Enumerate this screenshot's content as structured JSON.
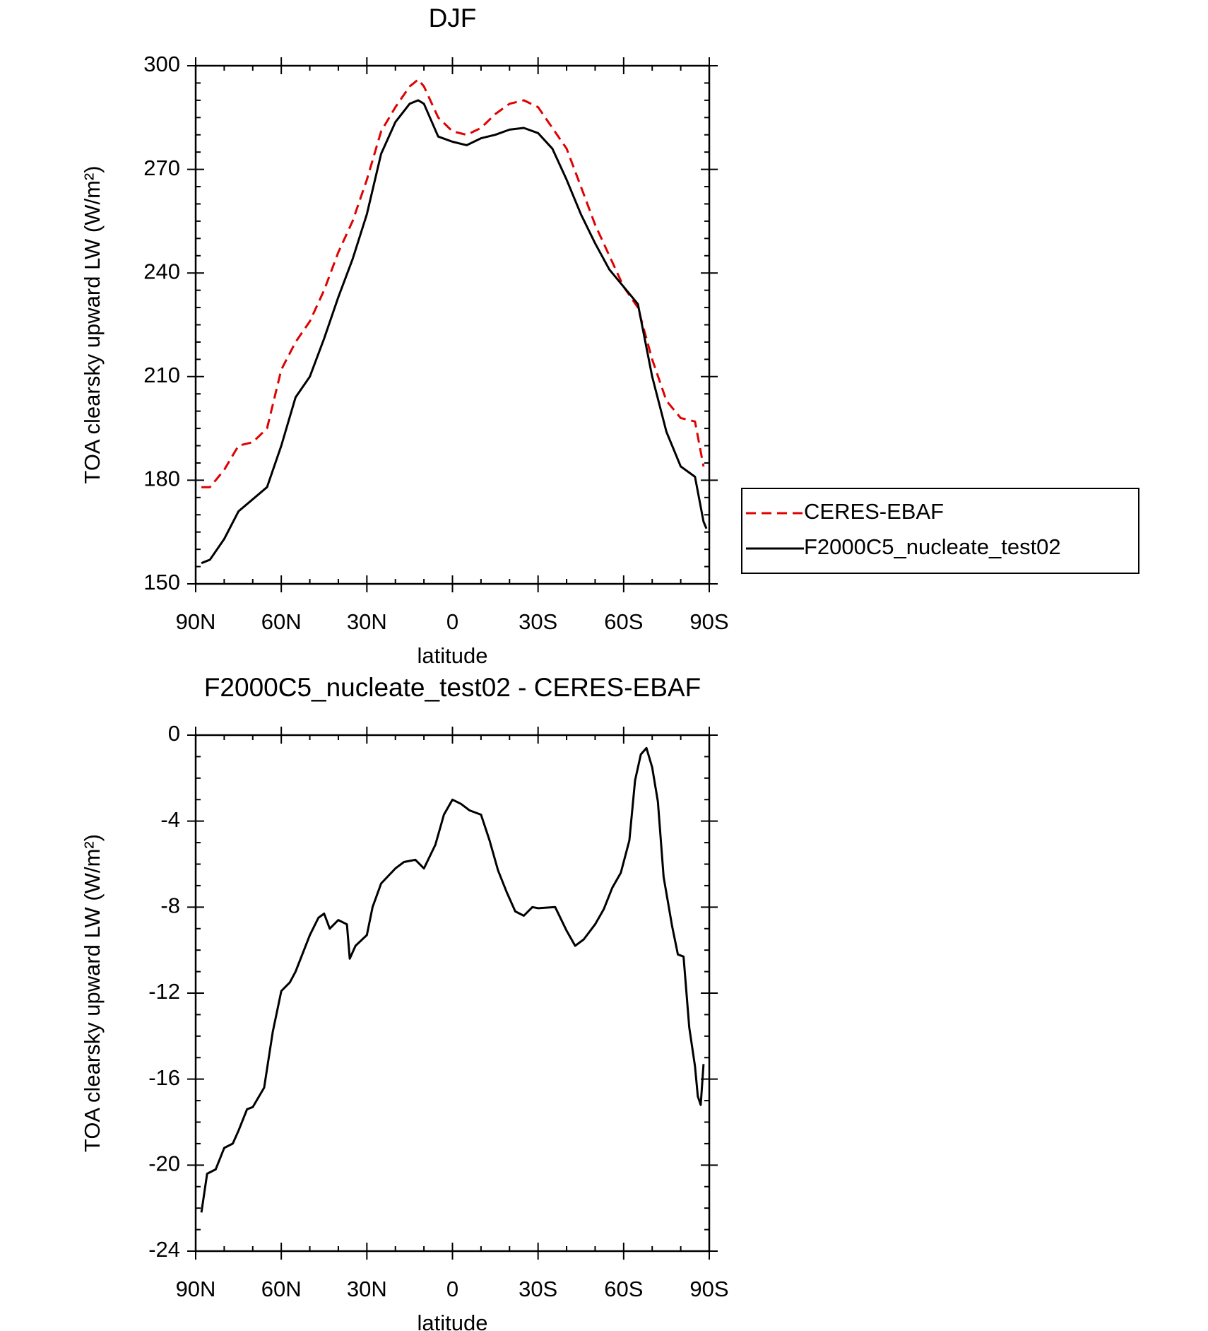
{
  "chart_data": [
    {
      "type": "line",
      "title": "DJF",
      "xlabel": "latitude",
      "ylabel": "TOA clearsky upward LW (W/m²)",
      "x": [
        88,
        85,
        80,
        75,
        70,
        65,
        60,
        55,
        50,
        45,
        40,
        35,
        30,
        25,
        20,
        15,
        12,
        10,
        5,
        0,
        -5,
        -10,
        -15,
        -20,
        -25,
        -30,
        -35,
        -40,
        -45,
        -50,
        -55,
        -60,
        -65,
        -70,
        -75,
        -80,
        -85,
        -88,
        -89
      ],
      "series": [
        {
          "name": "CERES-EBAF",
          "color": "#e00000",
          "dash": true,
          "values": [
            178,
            178,
            183,
            190,
            191,
            195,
            212,
            220,
            226,
            235,
            246,
            255,
            267,
            281,
            288,
            294,
            296,
            294,
            285,
            281,
            280,
            282,
            286,
            289,
            290,
            288,
            282,
            276,
            265,
            254,
            245,
            236,
            230,
            215,
            203,
            198,
            197,
            184,
            null
          ]
        },
        {
          "name": "F2000C5_nucleate_test02",
          "color": "#000000",
          "dash": false,
          "values": [
            156,
            157,
            163,
            171,
            174.5,
            178,
            190,
            204,
            210,
            221,
            233,
            244,
            257,
            274.5,
            283.7,
            289,
            290,
            289,
            279.5,
            278,
            277,
            279,
            280,
            281.5,
            282,
            280.5,
            276,
            267,
            257,
            248.6,
            241,
            236,
            231,
            210,
            194,
            184,
            181,
            168,
            166
          ]
        }
      ],
      "xlim": [
        90,
        -90
      ],
      "ylim": [
        150,
        300
      ],
      "xticks": [
        {
          "value": 90,
          "label": "90N"
        },
        {
          "value": 60,
          "label": "60N"
        },
        {
          "value": 30,
          "label": "30N"
        },
        0,
        {
          "value": -30,
          "label": "30S"
        },
        {
          "value": -60,
          "label": "60S"
        },
        {
          "value": -90,
          "label": "90S"
        }
      ],
      "yticks": [
        150,
        180,
        210,
        240,
        270,
        300
      ],
      "legend": "right"
    },
    {
      "type": "line",
      "title": "F2000C5_nucleate_test02 - CERES-EBAF",
      "xlabel": "latitude",
      "ylabel": "TOA clearsky upward LW (W/m²)",
      "x": [
        88,
        86,
        83,
        80,
        77,
        75,
        72,
        70,
        66,
        63,
        60,
        57,
        55,
        50,
        47,
        45,
        43,
        40,
        37,
        36,
        34,
        30,
        28,
        25,
        20,
        17,
        13,
        10,
        6,
        3,
        0,
        -3,
        -6,
        -10,
        -13,
        -16,
        -19,
        -22,
        -25,
        -28,
        -30,
        -36,
        -40,
        -43,
        -46,
        -50,
        -53,
        -56,
        -59,
        -62,
        -64,
        -66,
        -68,
        -70,
        -72,
        -74,
        -77,
        -79,
        -81,
        -83,
        -85,
        -86,
        -87,
        -88
      ],
      "values": [
        -22.2,
        -20.4,
        -20.2,
        -19.2,
        -19.0,
        -18.4,
        -17.4,
        -17.3,
        -16.4,
        -13.8,
        -11.9,
        -11.5,
        -11.0,
        -9.3,
        -8.5,
        -8.3,
        -9.0,
        -8.6,
        -8.8,
        -10.4,
        -9.8,
        -9.3,
        -8.0,
        -6.9,
        -6.2,
        -5.9,
        -5.8,
        -6.2,
        -5.1,
        -3.7,
        -3.0,
        -3.2,
        -3.5,
        -3.7,
        -4.9,
        -6.3,
        -7.3,
        -8.2,
        -8.4,
        -8.0,
        -8.05,
        -8.0,
        -9.1,
        -9.8,
        -9.5,
        -8.8,
        -8.1,
        -7.1,
        -6.4,
        -4.9,
        -2.1,
        -0.9,
        -0.6,
        -1.5,
        -3.1,
        -6.6,
        -8.9,
        -10.2,
        -10.3,
        -13.6,
        -15.4,
        -16.8,
        -17.2,
        -15.3
      ],
      "color": "#000000",
      "xlim": [
        90,
        -90
      ],
      "ylim": [
        -24,
        0
      ],
      "xticks": [
        {
          "value": 90,
          "label": "90N"
        },
        {
          "value": 60,
          "label": "60N"
        },
        {
          "value": 30,
          "label": "30N"
        },
        0,
        {
          "value": -30,
          "label": "30S"
        },
        {
          "value": -60,
          "label": "60S"
        },
        {
          "value": -90,
          "label": "90S"
        }
      ],
      "yticks": [
        -24,
        -20,
        -16,
        -12,
        -8,
        -4,
        0
      ]
    }
  ]
}
